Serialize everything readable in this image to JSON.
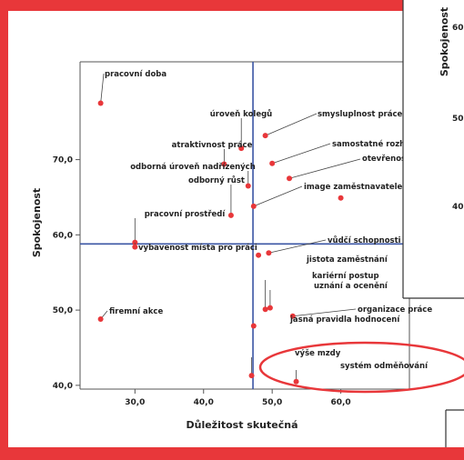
{
  "chart_data": {
    "type": "scatter",
    "title": "",
    "xlabel": "Důležitost skutečná",
    "ylabel": "Spokojenost",
    "xlim": [
      22,
      70
    ],
    "ylim": [
      39.5,
      83
    ],
    "xticks": [
      30,
      40,
      50,
      60
    ],
    "xtick_labels": [
      "30,0",
      "40,0",
      "50,0",
      "60,0"
    ],
    "yticks": [
      40,
      50,
      60,
      70
    ],
    "ytick_labels": [
      "40,0",
      "50,0",
      "60,0",
      "70,0"
    ],
    "reference_lines": {
      "x": 47.2,
      "y": 58.8
    },
    "grid": false,
    "point_color": "#e8373a",
    "reference_line_color": "#3a55a4",
    "points": [
      {
        "label": "pracovní doba",
        "x": 25.0,
        "y": 77.5
      },
      {
        "label": "úroveň kolegů",
        "x": 45.5,
        "y": 71.5
      },
      {
        "label": "atraktivnost práce",
        "x": 43.0,
        "y": 69.4
      },
      {
        "label": "odborná úroveň nadřízených",
        "x": 46.5,
        "y": 66.5
      },
      {
        "label": "odborný růst",
        "x": 44.0,
        "y": 62.6
      },
      {
        "label": "pracovní prostředí",
        "x": 30.0,
        "y": 59.0
      },
      {
        "label": "vybavenost místa pro práci",
        "x": 30.0,
        "y": 58.4
      },
      {
        "label": "firemní akce",
        "x": 25.0,
        "y": 48.8
      },
      {
        "label": "smysluplnost práce",
        "x": 49.0,
        "y": 73.2
      },
      {
        "label": "samostatné rozhodování",
        "x": 50.0,
        "y": 69.5
      },
      {
        "label": "otevřenost",
        "x": 52.5,
        "y": 67.5
      },
      {
        "label": "image zaměstnavatele",
        "x": 47.3,
        "y": 63.8
      },
      {
        "label": "vůdčí schopnosti",
        "x": 49.5,
        "y": 57.6
      },
      {
        "label": "jistota zaměstnání",
        "x": 48.0,
        "y": 57.3
      },
      {
        "label": "kariérní postup",
        "x": 49.0,
        "y": 50.1
      },
      {
        "label": "uznání a ocenění",
        "x": 49.7,
        "y": 50.3
      },
      {
        "label": "organizace práce",
        "x": 53.0,
        "y": 49.2
      },
      {
        "label": "jasná pravidla hodnocení",
        "x": 47.3,
        "y": 47.9
      },
      {
        "label": "výše mzdy",
        "x": 47.0,
        "y": 41.3
      },
      {
        "label": "systém odměňování",
        "x": 53.5,
        "y": 40.5
      },
      {
        "label": "",
        "x": 60.0,
        "y": 64.9
      }
    ],
    "overlay_chart": {
      "ylabel": "Spokojenost",
      "ytick_labels": [
        "60",
        "50",
        "40"
      ]
    }
  }
}
